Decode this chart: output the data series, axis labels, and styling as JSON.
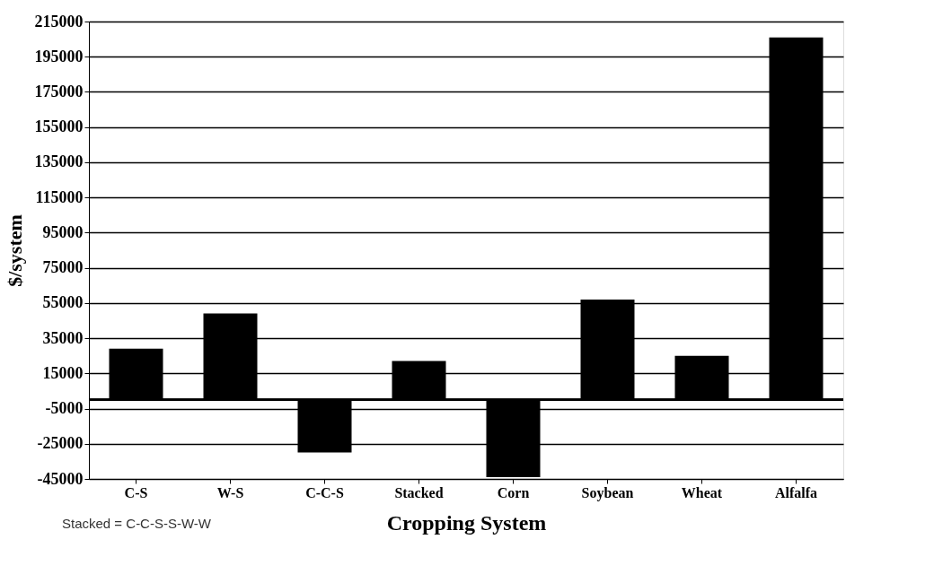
{
  "chart_data": {
    "type": "bar",
    "xlabel": "Cropping System",
    "ylabel": "$/system",
    "categories": [
      "C-S",
      "W-S",
      "C-C-S",
      "Stacked",
      "Corn",
      "Soybean",
      "Wheat",
      "Alfalfa"
    ],
    "values": [
      29000,
      49000,
      -30000,
      22000,
      -44000,
      57000,
      25000,
      206000
    ],
    "color": "#000000",
    "ylim": [
      -45000,
      215000
    ],
    "yticks": [
      -45000,
      -25000,
      -5000,
      15000,
      35000,
      55000,
      75000,
      95000,
      115000,
      135000,
      155000,
      175000,
      195000,
      215000
    ],
    "grid": "y",
    "annotations": [
      "Stacked = C-C-S-S-W-W"
    ]
  }
}
